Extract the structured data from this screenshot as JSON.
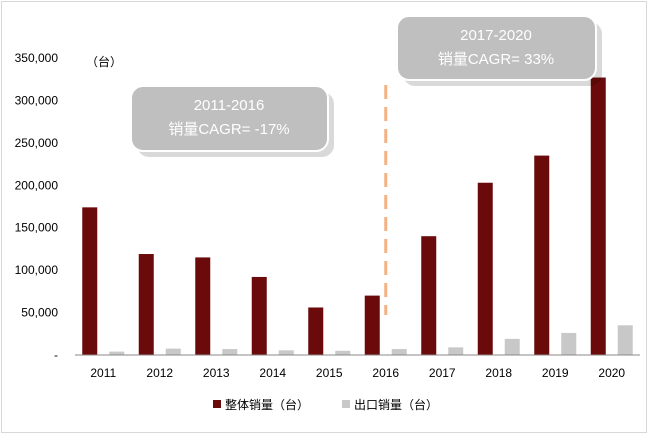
{
  "chart_data": {
    "type": "bar",
    "categories": [
      "2011",
      "2012",
      "2013",
      "2014",
      "2015",
      "2016",
      "2017",
      "2018",
      "2019",
      "2020"
    ],
    "series": [
      {
        "name": "整体销量（台）",
        "color": "#6b0a0a",
        "values": [
          174000,
          119000,
          115000,
          92000,
          56000,
          70000,
          140000,
          203000,
          235000,
          327000
        ]
      },
      {
        "name": "出口销量（台）",
        "color": "#c8c8c8",
        "values": [
          4000,
          7500,
          7000,
          5500,
          5000,
          7000,
          9000,
          19000,
          26000,
          35000
        ]
      }
    ],
    "y_unit": "（台）",
    "ylim": [
      0,
      350000
    ],
    "y_ticks": [
      "-",
      "50,000",
      "100,000",
      "150,000",
      "200,000",
      "250,000",
      "300,000",
      "350,000"
    ],
    "y_tick_values": [
      0,
      50000,
      100000,
      150000,
      200000,
      250000,
      300000,
      350000
    ],
    "annotations": [
      {
        "period": "2011-2016",
        "text": "销量CAGR= -17%"
      },
      {
        "period": "2017-2020",
        "text": "销量CAGR= 33%"
      }
    ],
    "divider_after": "2016",
    "divider_color": "#f4b183",
    "legend_position": "bottom",
    "grid": false
  }
}
